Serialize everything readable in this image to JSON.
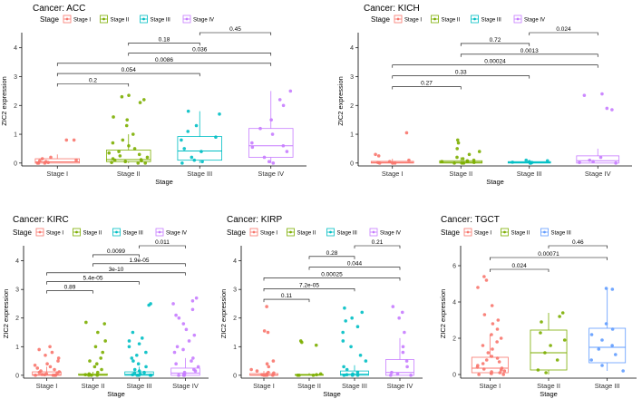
{
  "legend_label": "Stage",
  "chart_data": [
    {
      "type": "boxplot",
      "title": "Cancer: ACC",
      "xlabel": "Stage",
      "ylabel": "ZIC2 expression",
      "ylim": [
        -0.1,
        4.4
      ],
      "yticks": [
        0,
        1,
        2,
        3,
        4
      ],
      "categories": [
        "Stage I",
        "Stage II",
        "Stage III",
        "Stage IV"
      ],
      "series_colors": [
        "#F8766D",
        "#7CAE00",
        "#00BFC4",
        "#C77CFF"
      ],
      "boxes": [
        {
          "q1": 0.0,
          "median": 0.04,
          "q3": 0.15,
          "whisker_low": 0.0,
          "whisker_high": 0.3
        },
        {
          "q1": 0.05,
          "median": 0.12,
          "q3": 0.45,
          "whisker_low": 0.0,
          "whisker_high": 1.0
        },
        {
          "q1": 0.1,
          "median": 0.42,
          "q3": 0.92,
          "whisker_low": 0.0,
          "whisker_high": 1.8
        },
        {
          "q1": 0.2,
          "median": 0.6,
          "q3": 1.2,
          "whisker_low": 0.0,
          "whisker_high": 2.5
        }
      ],
      "points": [
        [
          0.0,
          0.0,
          0.0,
          0.02,
          0.05,
          0.08,
          0.1,
          0.15,
          0.2,
          0.8,
          0.8
        ],
        [
          0.0,
          0.0,
          0.02,
          0.05,
          0.08,
          0.1,
          0.12,
          0.15,
          0.2,
          0.25,
          0.3,
          0.35,
          0.4,
          0.5,
          0.6,
          0.7,
          0.8,
          1.0,
          1.3,
          1.5,
          1.6,
          2.1,
          2.2,
          2.3,
          2.35
        ],
        [
          0.0,
          0.05,
          0.1,
          0.2,
          0.4,
          0.5,
          0.8,
          0.9,
          1.1,
          1.3,
          1.7,
          1.8
        ],
        [
          0.0,
          0.05,
          0.2,
          0.4,
          0.55,
          0.6,
          0.7,
          1.0,
          1.2,
          1.5,
          2.0,
          2.2,
          2.5
        ]
      ],
      "comparisons": [
        {
          "from": 0,
          "to": 1,
          "label": "0.2"
        },
        {
          "from": 0,
          "to": 2,
          "label": "0.054"
        },
        {
          "from": 0,
          "to": 3,
          "label": "0.0086"
        },
        {
          "from": 1,
          "to": 3,
          "label": "0.036"
        },
        {
          "from": 1,
          "to": 2,
          "label": "0.18"
        },
        {
          "from": 2,
          "to": 3,
          "label": "0.45"
        }
      ]
    },
    {
      "type": "boxplot",
      "title": "Cancer: KICH",
      "xlabel": "Stage",
      "ylabel": "ZIC2 expression",
      "ylim": [
        -0.1,
        4.4
      ],
      "yticks": [
        0,
        1,
        2,
        3,
        4
      ],
      "categories": [
        "Stage I",
        "Stage II",
        "Stage III",
        "Stage IV"
      ],
      "series_colors": [
        "#F8766D",
        "#7CAE00",
        "#00BFC4",
        "#C77CFF"
      ],
      "boxes": [
        {
          "q1": 0.0,
          "median": 0.02,
          "q3": 0.06,
          "whisker_low": 0.0,
          "whisker_high": 0.15
        },
        {
          "q1": 0.0,
          "median": 0.03,
          "q3": 0.08,
          "whisker_low": 0.0,
          "whisker_high": 0.2
        },
        {
          "q1": 0.0,
          "median": 0.02,
          "q3": 0.05,
          "whisker_low": 0.0,
          "whisker_high": 0.1
        },
        {
          "q1": 0.0,
          "median": 0.08,
          "q3": 0.25,
          "whisker_low": 0.0,
          "whisker_high": 0.5
        }
      ],
      "points": [
        [
          0.0,
          0.0,
          0.0,
          0.02,
          0.05,
          0.1,
          0.25,
          0.3,
          1.05
        ],
        [
          0.0,
          0.0,
          0.0,
          0.02,
          0.05,
          0.05,
          0.08,
          0.1,
          0.15,
          0.2,
          0.3,
          0.4,
          0.5,
          0.7,
          0.8
        ],
        [
          0.0,
          0.0,
          0.02,
          0.03,
          0.05,
          0.08,
          0.1
        ],
        [
          0.0,
          0.02,
          0.05,
          0.1,
          0.2,
          1.85,
          1.9,
          2.35,
          2.4
        ]
      ],
      "comparisons": [
        {
          "from": 0,
          "to": 1,
          "label": "0.27"
        },
        {
          "from": 0,
          "to": 2,
          "label": "0.33"
        },
        {
          "from": 0,
          "to": 3,
          "label": "0.00024"
        },
        {
          "from": 1,
          "to": 3,
          "label": "0.0013"
        },
        {
          "from": 1,
          "to": 2,
          "label": "0.72"
        },
        {
          "from": 2,
          "to": 3,
          "label": "0.024"
        }
      ]
    },
    {
      "type": "boxplot",
      "title": "Cancer: KIRC",
      "xlabel": "Stage",
      "ylabel": "ZIC2 expression",
      "ylim": [
        -0.1,
        4.4
      ],
      "yticks": [
        0,
        1,
        2,
        3,
        4
      ],
      "categories": [
        "Stage I",
        "Stage II",
        "Stage III",
        "Stage IV"
      ],
      "series_colors": [
        "#F8766D",
        "#7CAE00",
        "#00BFC4",
        "#C77CFF"
      ],
      "boxes": [
        {
          "q1": 0.0,
          "median": 0.02,
          "q3": 0.12,
          "whisker_low": 0.0,
          "whisker_high": 0.3
        },
        {
          "q1": 0.0,
          "median": 0.01,
          "q3": 0.05,
          "whisker_low": 0.0,
          "whisker_high": 0.12
        },
        {
          "q1": 0.0,
          "median": 0.03,
          "q3": 0.12,
          "whisker_low": 0.0,
          "whisker_high": 0.3
        },
        {
          "q1": 0.0,
          "median": 0.08,
          "q3": 0.25,
          "whisker_low": 0.0,
          "whisker_high": 0.6
        }
      ],
      "points": [
        [
          0.0,
          0.0,
          0.0,
          0.0,
          0.02,
          0.03,
          0.05,
          0.08,
          0.1,
          0.12,
          0.15,
          0.2,
          0.25,
          0.3,
          0.35,
          0.4,
          0.5,
          0.6,
          0.7,
          0.8,
          0.9,
          1.0
        ],
        [
          0.0,
          0.0,
          0.0,
          0.02,
          0.05,
          0.1,
          0.2,
          0.3,
          0.4,
          0.5,
          0.6,
          0.8,
          1.0,
          1.2,
          1.5,
          1.8,
          1.85
        ],
        [
          0.0,
          0.0,
          0.0,
          0.0,
          0.02,
          0.05,
          0.08,
          0.1,
          0.15,
          0.2,
          0.3,
          0.4,
          0.5,
          0.6,
          0.7,
          0.8,
          1.0,
          1.1,
          1.2,
          1.3,
          1.5,
          2.45,
          2.5
        ],
        [
          0.0,
          0.0,
          0.0,
          0.02,
          0.05,
          0.1,
          0.15,
          0.2,
          0.3,
          0.4,
          0.5,
          0.6,
          0.8,
          0.9,
          1.0,
          1.2,
          1.4,
          1.6,
          1.8,
          2.0,
          2.1,
          2.3,
          2.5,
          2.6,
          2.7
        ]
      ],
      "comparisons": [
        {
          "from": 0,
          "to": 1,
          "label": "0.89"
        },
        {
          "from": 0,
          "to": 2,
          "label": "5.4e-05"
        },
        {
          "from": 0,
          "to": 3,
          "label": "3e-10"
        },
        {
          "from": 1,
          "to": 3,
          "label": "1.9e-05"
        },
        {
          "from": 1,
          "to": 2,
          "label": "0.0099"
        },
        {
          "from": 2,
          "to": 3,
          "label": "0.011"
        }
      ]
    },
    {
      "type": "boxplot",
      "title": "Cancer: KIRP",
      "xlabel": "Stage",
      "ylabel": "ZIC2 expression",
      "ylim": [
        -0.1,
        4.4
      ],
      "yticks": [
        0,
        1,
        2,
        3,
        4
      ],
      "categories": [
        "Stage I",
        "Stage II",
        "Stage III",
        "Stage IV"
      ],
      "series_colors": [
        "#F8766D",
        "#7CAE00",
        "#00BFC4",
        "#C77CFF"
      ],
      "boxes": [
        {
          "q1": 0.0,
          "median": 0.01,
          "q3": 0.06,
          "whisker_low": 0.0,
          "whisker_high": 0.15
        },
        {
          "q1": 0.0,
          "median": 0.01,
          "q3": 0.03,
          "whisker_low": 0.0,
          "whisker_high": 0.08
        },
        {
          "q1": 0.0,
          "median": 0.04,
          "q3": 0.15,
          "whisker_low": 0.0,
          "whisker_high": 0.35
        },
        {
          "q1": 0.0,
          "median": 0.1,
          "q3": 0.55,
          "whisker_low": 0.0,
          "whisker_high": 1.3
        }
      ],
      "points": [
        [
          0.0,
          0.0,
          0.0,
          0.0,
          0.02,
          0.05,
          0.08,
          0.1,
          0.15,
          0.2,
          0.3,
          0.4,
          0.5,
          1.5,
          1.55,
          2.4
        ],
        [
          0.0,
          0.0,
          0.0,
          0.02,
          0.05,
          1.05,
          1.15,
          1.2
        ],
        [
          0.0,
          0.0,
          0.0,
          0.02,
          0.05,
          0.1,
          0.2,
          0.3,
          0.5,
          0.7,
          1.0,
          1.2,
          1.5,
          1.7,
          1.9,
          2.0,
          2.2,
          2.35
        ],
        [
          0.0,
          0.0,
          0.05,
          0.1,
          0.3,
          0.5,
          0.8,
          1.0,
          1.5,
          2.0,
          2.2,
          2.4
        ]
      ],
      "comparisons": [
        {
          "from": 0,
          "to": 1,
          "label": "0.11"
        },
        {
          "from": 0,
          "to": 2,
          "label": "7.2e-05"
        },
        {
          "from": 0,
          "to": 3,
          "label": "0.00025"
        },
        {
          "from": 1,
          "to": 3,
          "label": "0.044"
        },
        {
          "from": 1,
          "to": 2,
          "label": "0.28"
        },
        {
          "from": 2,
          "to": 3,
          "label": "0.21"
        }
      ]
    },
    {
      "type": "boxplot",
      "title": "Cancer: TGCT",
      "xlabel": "Stage",
      "ylabel": "ZIC2 expression",
      "ylim": [
        -0.2,
        6.9
      ],
      "yticks": [
        0,
        2,
        4,
        6
      ],
      "categories": [
        "Stage I",
        "Stage II",
        "Stage III"
      ],
      "series_colors": [
        "#F8766D",
        "#7CAE00",
        "#619CFF"
      ],
      "boxes": [
        {
          "q1": 0.1,
          "median": 0.35,
          "q3": 0.95,
          "whisker_low": 0.0,
          "whisker_high": 2.2
        },
        {
          "q1": 0.25,
          "median": 1.2,
          "q3": 2.45,
          "whisker_low": 0.0,
          "whisker_high": 3.4
        },
        {
          "q1": 0.65,
          "median": 1.5,
          "q3": 2.55,
          "whisker_low": 0.2,
          "whisker_high": 4.75
        }
      ],
      "points": [
        [
          0.0,
          0.0,
          0.05,
          0.1,
          0.15,
          0.2,
          0.25,
          0.3,
          0.35,
          0.4,
          0.5,
          0.6,
          0.7,
          0.8,
          0.9,
          1.0,
          1.2,
          1.4,
          1.6,
          1.8,
          2.0,
          2.2,
          2.5,
          2.8,
          3.0,
          3.3,
          3.8,
          4.8,
          5.2,
          5.4
        ],
        [
          0.1,
          0.25,
          0.8,
          1.2,
          1.6,
          1.9,
          2.3,
          2.9,
          3.2,
          3.4
        ],
        [
          0.2,
          0.5,
          0.8,
          1.1,
          1.4,
          1.6,
          1.9,
          2.2,
          2.5,
          2.8,
          4.7,
          4.75
        ]
      ],
      "comparisons": [
        {
          "from": 0,
          "to": 1,
          "label": "0.024"
        },
        {
          "from": 0,
          "to": 2,
          "label": "0.00071"
        },
        {
          "from": 1,
          "to": 2,
          "label": "0.46"
        }
      ]
    }
  ]
}
